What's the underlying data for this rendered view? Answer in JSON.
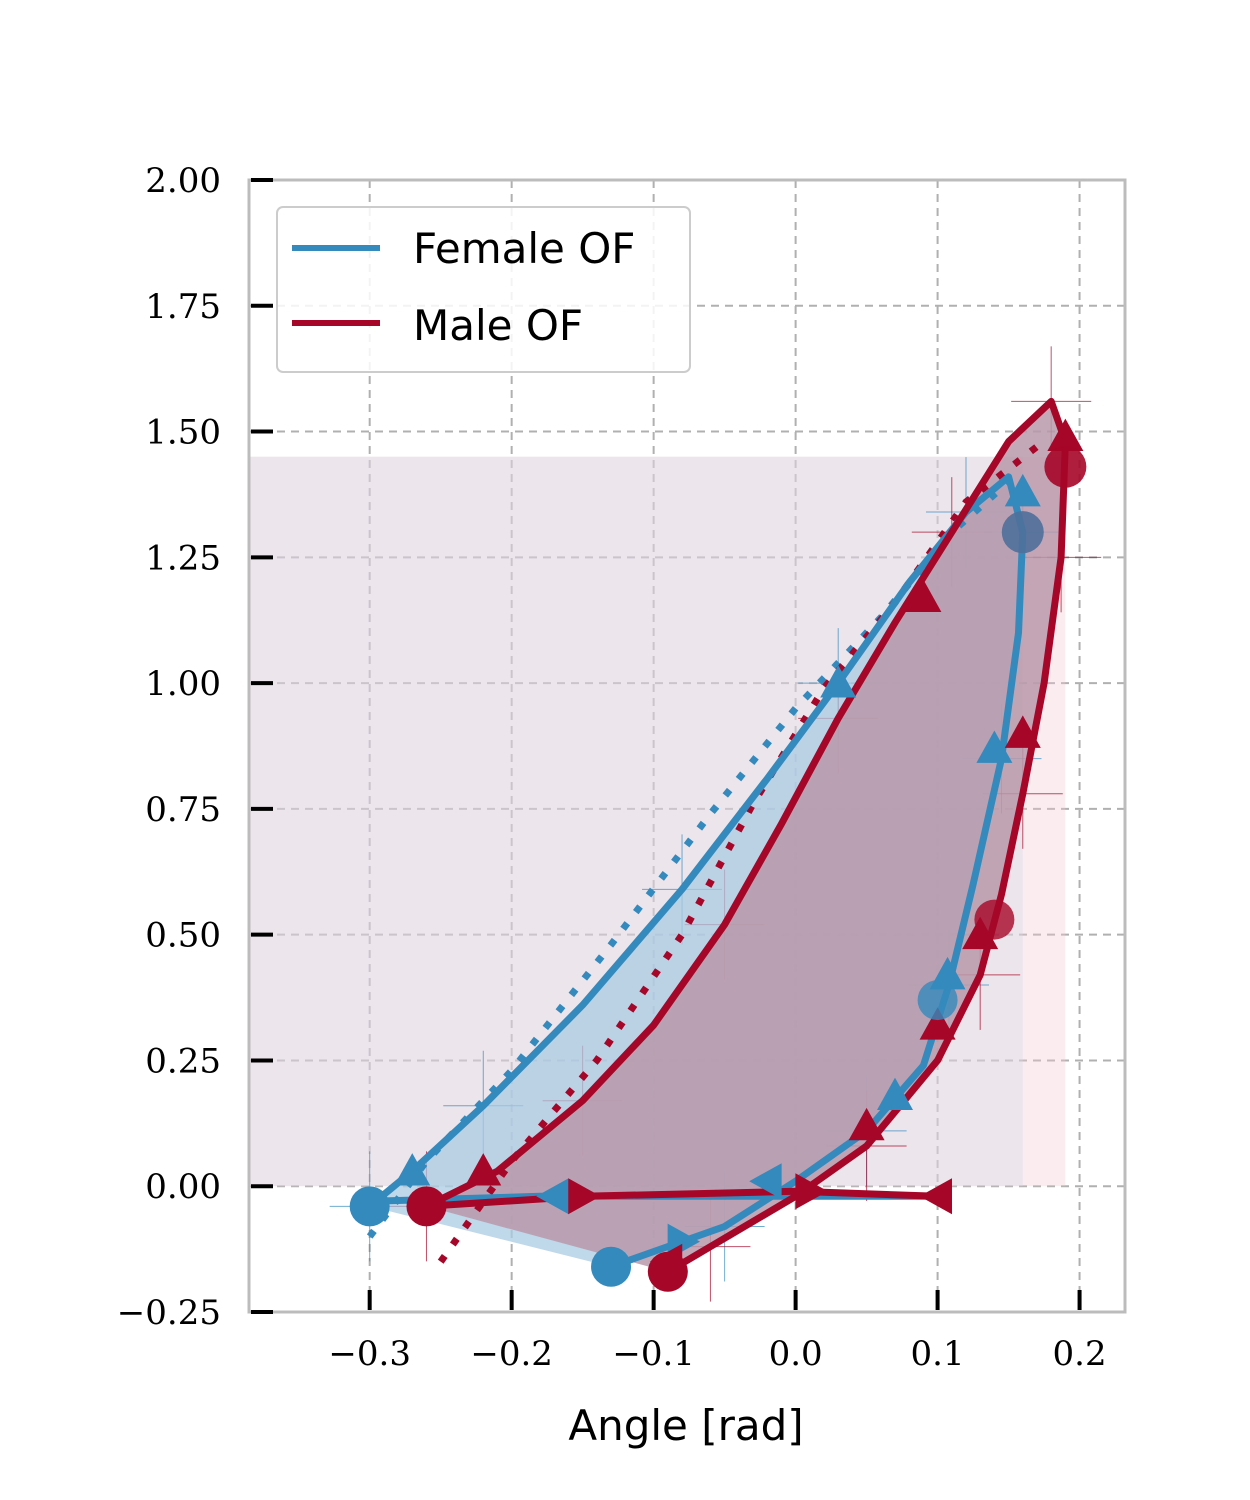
{
  "chart_data": {
    "type": "line",
    "title": "",
    "xlabel": "Angle [rad]",
    "ylabel": "",
    "xlim": [
      -0.385,
      0.232
    ],
    "ylim": [
      -0.25,
      2.0
    ],
    "xticks": [
      -0.3,
      -0.2,
      -0.1,
      0.0,
      0.1,
      0.2
    ],
    "xtick_labels": [
      "−0.3",
      "−0.2",
      "−0.1",
      "0.0",
      "0.1",
      "0.2"
    ],
    "yticks": [
      -0.25,
      0.0,
      0.25,
      0.5,
      0.75,
      1.0,
      1.25,
      1.5,
      1.75,
      2.0
    ],
    "ytick_labels": [
      "−0.25",
      "0.00",
      "0.25",
      "0.50",
      "0.75",
      "1.00",
      "1.25",
      "1.50",
      "1.75",
      "2.00"
    ],
    "grid": true,
    "legend_position": "top-left",
    "series": [
      {
        "name": "Female OF",
        "color": "#348abd",
        "fill_color": "#a9cbe3",
        "loop": [
          [
            -0.3,
            -0.04
          ],
          [
            -0.27,
            0.03
          ],
          [
            -0.22,
            0.16
          ],
          [
            -0.15,
            0.36
          ],
          [
            -0.08,
            0.59
          ],
          [
            -0.02,
            0.81
          ],
          [
            0.03,
            1.0
          ],
          [
            0.08,
            1.2
          ],
          [
            0.12,
            1.34
          ],
          [
            0.15,
            1.41
          ],
          [
            0.16,
            1.3
          ],
          [
            0.157,
            1.1
          ],
          [
            0.145,
            0.85
          ],
          [
            0.125,
            0.6
          ],
          [
            0.108,
            0.4
          ],
          [
            0.09,
            0.24
          ],
          [
            0.05,
            0.11
          ],
          [
            0.0,
            0.01
          ],
          [
            -0.05,
            -0.08
          ],
          [
            -0.13,
            -0.16
          ]
        ],
        "flat": [
          [
            -0.3,
            -0.03
          ],
          [
            -0.18,
            -0.02
          ],
          [
            -0.05,
            -0.02
          ],
          [
            0.05,
            -0.02
          ],
          [
            0.1,
            -0.02
          ]
        ],
        "dotted": [
          [
            -0.3,
            -0.1
          ],
          [
            -0.26,
            0.05
          ],
          [
            -0.2,
            0.23
          ],
          [
            -0.13,
            0.48
          ],
          [
            -0.06,
            0.74
          ],
          [
            0.0,
            0.95
          ],
          [
            0.06,
            1.13
          ],
          [
            0.11,
            1.3
          ],
          [
            0.15,
            1.4
          ]
        ],
        "markers": [
          [
            -0.27,
            0.03
          ],
          [
            0.03,
            1.0
          ],
          [
            0.16,
            1.38
          ],
          [
            0.14,
            0.87
          ],
          [
            0.107,
            0.42
          ],
          [
            0.07,
            0.18
          ],
          [
            -0.02,
            0.01
          ],
          [
            -0.08,
            -0.11
          ],
          [
            -0.17,
            -0.02
          ]
        ],
        "start_marker": [
          -0.13,
          -0.16
        ],
        "mid_marker": [
          0.1,
          0.37
        ],
        "dark_marker": [
          0.16,
          1.3
        ]
      },
      {
        "name": "Male OF",
        "color": "#a60628",
        "fill_color": "#b899aa",
        "loop": [
          [
            -0.26,
            -0.04
          ],
          [
            -0.21,
            0.03
          ],
          [
            -0.15,
            0.17
          ],
          [
            -0.1,
            0.32
          ],
          [
            -0.05,
            0.52
          ],
          [
            -0.01,
            0.72
          ],
          [
            0.03,
            0.93
          ],
          [
            0.07,
            1.12
          ],
          [
            0.11,
            1.3
          ],
          [
            0.15,
            1.48
          ],
          [
            0.18,
            1.56
          ],
          [
            0.19,
            1.48
          ],
          [
            0.187,
            1.25
          ],
          [
            0.175,
            1.0
          ],
          [
            0.16,
            0.78
          ],
          [
            0.145,
            0.58
          ],
          [
            0.13,
            0.42
          ],
          [
            0.1,
            0.25
          ],
          [
            0.05,
            0.08
          ],
          [
            0.0,
            -0.02
          ],
          [
            -0.06,
            -0.12
          ],
          [
            -0.09,
            -0.17
          ]
        ],
        "flat": [
          [
            -0.26,
            -0.04
          ],
          [
            -0.15,
            -0.02
          ],
          [
            0.0,
            -0.01
          ],
          [
            0.1,
            -0.02
          ]
        ],
        "dotted": [
          [
            -0.25,
            -0.15
          ],
          [
            -0.2,
            0.05
          ],
          [
            -0.14,
            0.25
          ],
          [
            -0.08,
            0.5
          ],
          [
            -0.03,
            0.76
          ],
          [
            0.02,
            0.99
          ],
          [
            0.07,
            1.16
          ],
          [
            0.12,
            1.36
          ],
          [
            0.17,
            1.47
          ]
        ],
        "markers": [
          [
            -0.22,
            0.03
          ],
          [
            0.09,
            1.17
          ],
          [
            0.19,
            1.49
          ],
          [
            0.16,
            0.9
          ],
          [
            0.13,
            0.5
          ],
          [
            0.1,
            0.32
          ],
          [
            0.05,
            0.12
          ],
          [
            0.01,
            -0.01
          ],
          [
            -0.09,
            -0.15
          ],
          [
            -0.15,
            -0.02
          ],
          [
            0.1,
            -0.02
          ]
        ],
        "start_marker": [
          -0.09,
          -0.17
        ],
        "mid_marker": [
          0.14,
          0.53
        ],
        "dark_marker": [
          0.19,
          1.43
        ]
      }
    ]
  }
}
